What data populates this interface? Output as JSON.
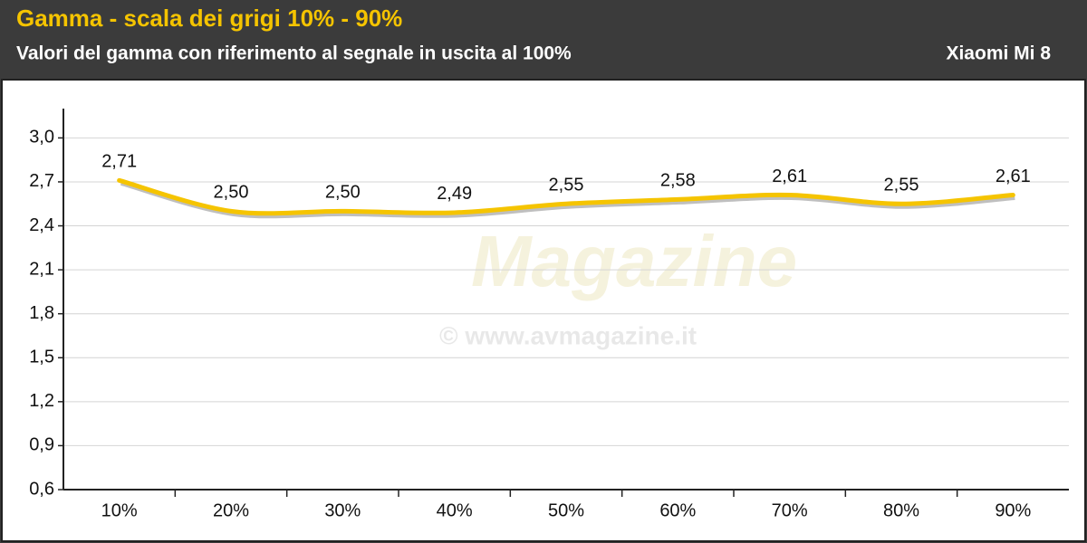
{
  "chart_data": {
    "type": "line",
    "title": "Gamma - scala dei grigi 10% - 90%",
    "subtitle": "Valori del gamma con riferimento al segnale in uscita al 100%",
    "device": "Xiaomi Mi 8",
    "watermark": {
      "brand": "Magazine",
      "url": "© www.avmagazine.it"
    },
    "categories": [
      "10%",
      "20%",
      "30%",
      "40%",
      "50%",
      "60%",
      "70%",
      "80%",
      "90%"
    ],
    "series": [
      {
        "color": "#f5c400",
        "values": [
          2.71,
          2.5,
          2.5,
          2.49,
          2.55,
          2.58,
          2.61,
          2.55,
          2.61
        ],
        "value_labels": [
          "2,71",
          "2,50",
          "2,50",
          "2,49",
          "2,55",
          "2,58",
          "2,61",
          "2,55",
          "2,61"
        ]
      }
    ],
    "ylim": [
      0.6,
      3.2
    ],
    "yticks": [
      {
        "value": 0.6,
        "label": "0,6"
      },
      {
        "value": 0.9,
        "label": "0,9"
      },
      {
        "value": 1.2,
        "label": "1,2"
      },
      {
        "value": 1.5,
        "label": "1,5"
      },
      {
        "value": 1.8,
        "label": "1,8"
      },
      {
        "value": 2.1,
        "label": "2,1"
      },
      {
        "value": 2.4,
        "label": "2,4"
      },
      {
        "value": 2.7,
        "label": "2,7"
      },
      {
        "value": 3.0,
        "label": "3,0"
      }
    ],
    "grid": true
  }
}
